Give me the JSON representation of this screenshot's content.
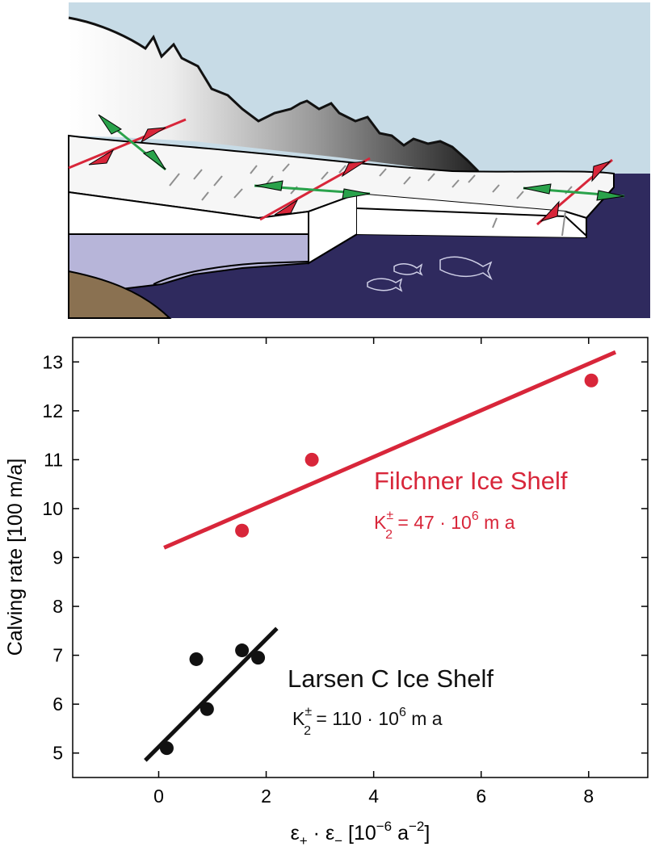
{
  "illustration": {
    "colors": {
      "sky": "#c7dbe6",
      "ocean": "#2f2a5e",
      "ice_shelf": "#f6f6f6",
      "ice_underside": "#b7b5d9",
      "bedrock": "#8a7151",
      "compression_arrow": "#d8263a",
      "extension_arrow": "#2aa24b"
    },
    "icons": [
      "mountain-ridge",
      "ice-shelf",
      "fish-icon",
      "strain-arrow-red",
      "strain-arrow-green"
    ]
  },
  "chart_data": {
    "type": "scatter",
    "xlabel": "ε+ · ε− [10−6 a−2]",
    "ylabel": "Calving rate [100 m/a]",
    "xlim": [
      -1.6,
      9.1
    ],
    "ylim": [
      4.5,
      13.5
    ],
    "xticks": [
      "0",
      "2",
      "4",
      "6",
      "8"
    ],
    "yticks": [
      "5",
      "6",
      "7",
      "8",
      "9",
      "10",
      "11",
      "12",
      "13"
    ],
    "grid": false,
    "series": [
      {
        "name": "Filchner Ice Shelf",
        "annotation": "K2± = 47 · 106 m a",
        "color": "#d8263a",
        "points": [
          {
            "x": 1.55,
            "y": 9.55
          },
          {
            "x": 2.85,
            "y": 11.0
          },
          {
            "x": 8.05,
            "y": 12.62
          }
        ],
        "fit_line": [
          {
            "x": 0.1,
            "y": 9.2
          },
          {
            "x": 8.5,
            "y": 13.2
          }
        ]
      },
      {
        "name": "Larsen C Ice Shelf",
        "annotation": "K2± = 110 · 106 m a",
        "color": "#111111",
        "points": [
          {
            "x": 0.15,
            "y": 5.1
          },
          {
            "x": 0.7,
            "y": 6.92
          },
          {
            "x": 0.9,
            "y": 5.9
          },
          {
            "x": 1.55,
            "y": 7.1
          },
          {
            "x": 1.85,
            "y": 6.95
          }
        ],
        "fit_line": [
          {
            "x": -0.25,
            "y": 4.85
          },
          {
            "x": 2.2,
            "y": 7.55
          }
        ]
      }
    ]
  },
  "labels": {
    "ylabel": "Calving rate [100 m/a]",
    "xlabel_eps": "ε",
    "xlabel_plus": "+",
    "xlabel_dot": " · ",
    "xlabel_minus": "−",
    "xlabel_bracket_open": " [10",
    "xlabel_exp1": "−6",
    "xlabel_unit": " a",
    "xlabel_exp2": "−2",
    "xlabel_bracket_close": "]",
    "filchner_name": "Filchner Ice Shelf",
    "filchner_k": "K",
    "filchner_sub": "2",
    "filchner_sup": "±",
    "filchner_eq": " = 47 · 10",
    "filchner_exp": "6",
    "filchner_unit": " m a",
    "larsen_name": "Larsen C Ice Shelf",
    "larsen_k": "K",
    "larsen_sub": "2",
    "larsen_sup": "±",
    "larsen_eq": " = 110 · 10",
    "larsen_exp": "6",
    "larsen_unit": " m a"
  }
}
